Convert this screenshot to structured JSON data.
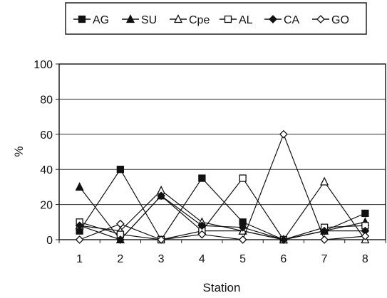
{
  "chart_data": {
    "type": "line",
    "xlabel": "Station",
    "ylabel": "%",
    "x": [
      1,
      2,
      3,
      4,
      5,
      6,
      7,
      8
    ],
    "ylim": [
      0,
      100
    ],
    "yticks": [
      0,
      20,
      40,
      60,
      80,
      100
    ],
    "grid": "horizontal",
    "legend_position": "top",
    "series": [
      {
        "name": "AG",
        "marker": "filled-square",
        "values": [
          5,
          40,
          0,
          35,
          10,
          0,
          5,
          15
        ]
      },
      {
        "name": "SU",
        "marker": "filled-triangle",
        "values": [
          30,
          0,
          25,
          5,
          5,
          0,
          5,
          10
        ]
      },
      {
        "name": "Cpe",
        "marker": "open-triangle",
        "values": [
          8,
          5,
          28,
          10,
          5,
          0,
          33,
          0
        ]
      },
      {
        "name": "AL",
        "marker": "open-square",
        "values": [
          10,
          3,
          0,
          5,
          35,
          0,
          7,
          8
        ]
      },
      {
        "name": "CA",
        "marker": "filled-diamond",
        "values": [
          8,
          0,
          25,
          8,
          7,
          0,
          5,
          5
        ]
      },
      {
        "name": "GO",
        "marker": "open-diamond",
        "values": [
          0,
          9,
          0,
          3,
          0,
          60,
          0,
          2
        ]
      }
    ]
  }
}
